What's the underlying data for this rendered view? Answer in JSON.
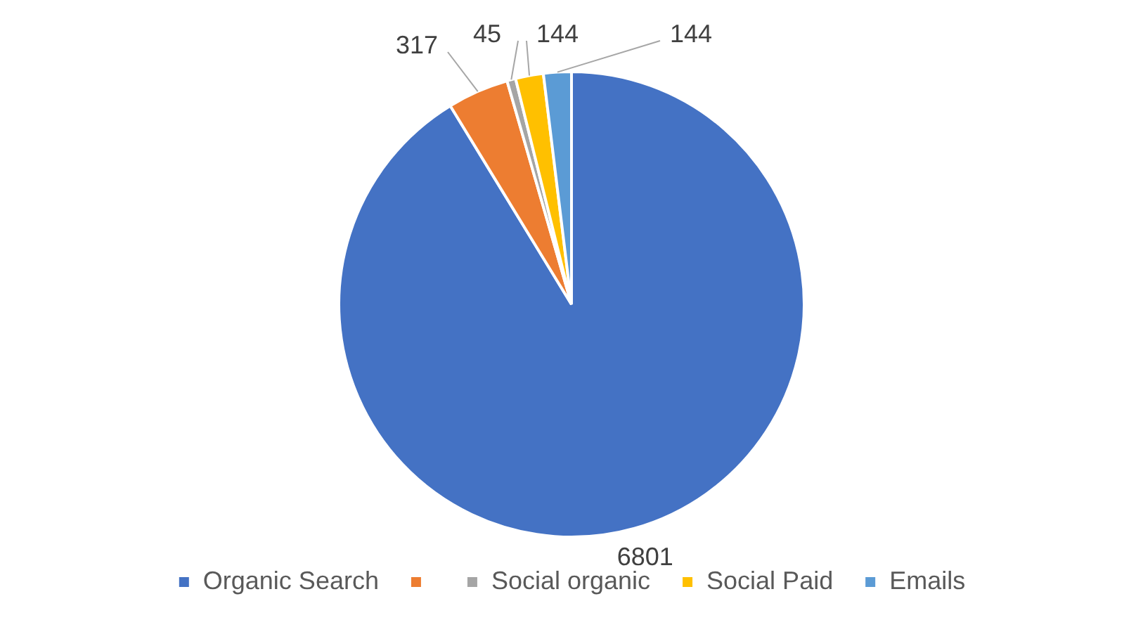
{
  "chart_data": {
    "type": "pie",
    "categories": [
      "Organic Search",
      null,
      "Social organic",
      "Social Paid",
      "Emails"
    ],
    "values": [
      6801,
      317,
      45,
      144,
      144
    ],
    "colors": [
      "#4472c4",
      "#ed7d31",
      "#a5a5a5",
      "#ffc000",
      "#5b9bd5"
    ],
    "data_labels": true,
    "legend": "bottom"
  }
}
